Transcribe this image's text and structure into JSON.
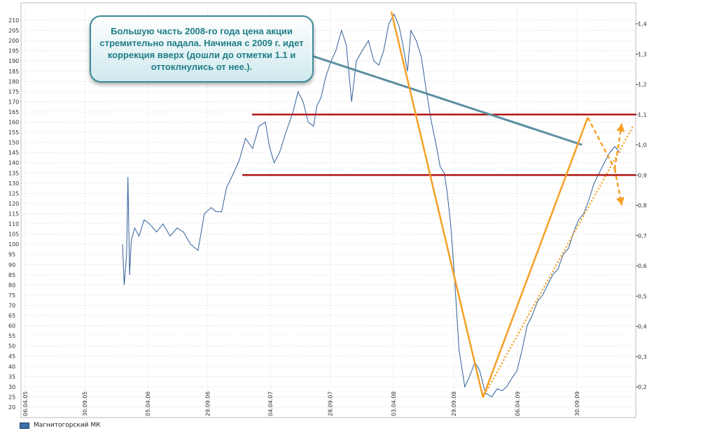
{
  "chart_data": {
    "type": "line",
    "title": "",
    "xlabel": "",
    "ylabel": "",
    "ylim": [
      20,
      212
    ],
    "y2lim": [
      0.134,
      1.47
    ],
    "left_ticks": [
      "20",
      "25",
      "30",
      "35",
      "40",
      "45",
      "50",
      "55",
      "60",
      "65",
      "70",
      "75",
      "80",
      "85",
      "90",
      "95",
      "100",
      "105",
      "110",
      "115",
      "120",
      "125",
      "130",
      "135",
      "140",
      "145",
      "150",
      "155",
      "160",
      "165",
      "170",
      "175",
      "180",
      "185",
      "190",
      "195",
      "200",
      "205",
      "210"
    ],
    "right_ticks": [
      "0,2",
      "0,3",
      "0,4",
      "0,5",
      "0,6",
      "0,7",
      "0,8",
      "0,9",
      "1,0",
      "1,1",
      "1,2",
      "1,3",
      "1,4"
    ],
    "x_ticks": [
      "06.04.05",
      "30.09.05",
      "05.04.06",
      "29.09.06",
      "04.04.07",
      "28.09.07",
      "03.04.08",
      "29.09.08",
      "06.04.09",
      "30.09.09"
    ],
    "series": [
      {
        "name": "Магнитогорский МК",
        "color": "#3c6ea8",
        "x": [
          "2006-01-20",
          "2006-01-25",
          "2006-02-01",
          "2006-02-05",
          "2006-02-10",
          "2006-02-15",
          "2006-02-25",
          "2006-03-10",
          "2006-03-25",
          "2006-04-10",
          "2006-05-01",
          "2006-05-20",
          "2006-06-10",
          "2006-07-01",
          "2006-07-20",
          "2006-08-10",
          "2006-09-01",
          "2006-09-20",
          "2006-10-10",
          "2006-10-25",
          "2006-11-10",
          "2006-11-25",
          "2006-12-10",
          "2007-01-01",
          "2007-01-20",
          "2007-02-10",
          "2007-03-01",
          "2007-03-20",
          "2007-04-01",
          "2007-04-15",
          "2007-05-01",
          "2007-05-20",
          "2007-06-10",
          "2007-06-25",
          "2007-07-10",
          "2007-07-25",
          "2007-08-10",
          "2007-08-20",
          "2007-09-01",
          "2007-09-15",
          "2007-10-01",
          "2007-10-15",
          "2007-11-01",
          "2007-11-15",
          "2007-12-01",
          "2007-12-15",
          "2008-01-01",
          "2008-01-20",
          "2008-02-05",
          "2008-02-20",
          "2008-03-05",
          "2008-03-20",
          "2008-04-05",
          "2008-04-20",
          "2008-05-01",
          "2008-05-15",
          "2008-05-25",
          "2008-06-10",
          "2008-06-25",
          "2008-07-10",
          "2008-07-25",
          "2008-08-10",
          "2008-08-20",
          "2008-09-01",
          "2008-09-10",
          "2008-09-20",
          "2008-10-01",
          "2008-10-15",
          "2008-11-01",
          "2008-11-15",
          "2008-12-01",
          "2008-12-15",
          "2009-01-01",
          "2009-01-20",
          "2009-02-05",
          "2009-02-20",
          "2009-03-05",
          "2009-03-20",
          "2009-04-05",
          "2009-04-20",
          "2009-05-05",
          "2009-05-20",
          "2009-06-05",
          "2009-06-20",
          "2009-07-05",
          "2009-07-20",
          "2009-08-05",
          "2009-08-20",
          "2009-09-05",
          "2009-09-20",
          "2009-10-05",
          "2009-10-20",
          "2009-11-05",
          "2009-11-20",
          "2009-12-05",
          "2009-12-20",
          "2010-01-05",
          "2010-01-20",
          "2010-02-05"
        ],
        "y": [
          100,
          80,
          95,
          133,
          85,
          102,
          108,
          104,
          112,
          110,
          106,
          110,
          104,
          108,
          106,
          100,
          97,
          115,
          118,
          116,
          116,
          128,
          133,
          141,
          152,
          147,
          158,
          160,
          148,
          140,
          145,
          155,
          165,
          175,
          170,
          160,
          158,
          168,
          172,
          182,
          190,
          195,
          205,
          198,
          170,
          190,
          195,
          200,
          190,
          188,
          195,
          208,
          213,
          207,
          198,
          185,
          205,
          200,
          192,
          175,
          160,
          147,
          138,
          135,
          125,
          110,
          85,
          48,
          30,
          35,
          42,
          38,
          27,
          25,
          29,
          28,
          30,
          34,
          38,
          48,
          60,
          65,
          72,
          75,
          80,
          85,
          88,
          95,
          98,
          106,
          112,
          115,
          122,
          130,
          135,
          140,
          145,
          148,
          145
        ]
      }
    ],
    "annotations": {
      "callout_text": "Большую часть 2008-го года цена акции стремительно падала. Начиная с 2009 г. идет коррекция вверх (дошли до отметки 1.1 и оттоклнулись от нее.).",
      "resistance_levels": [
        1.1,
        0.9
      ],
      "trend_lines": [
        {
          "from": [
            "2008-03-28",
            1.44
          ],
          "to": [
            "2008-12-25",
            0.165
          ]
        },
        {
          "from": [
            "2008-12-25",
            0.165
          ],
          "to": [
            "2009-11-01",
            1.09
          ]
        }
      ],
      "trend_dotted": {
        "from": [
          "2008-12-25",
          0.165
        ],
        "to": [
          "2010-03-15",
          1.06
        ]
      },
      "arrow_up": {
        "from": [
          "2010-01-20",
          0.92
        ],
        "to": [
          "2010-02-10",
          1.07
        ]
      },
      "arrow_down": {
        "from": [
          "2010-01-20",
          0.92
        ],
        "to": [
          "2010-02-10",
          0.8
        ]
      },
      "arrow_split_from_peak": {
        "from": [
          "2009-11-01",
          1.09
        ],
        "to": [
          "2010-01-25",
          0.91
        ]
      },
      "pointer_line": {
        "from": [
          "2007-07-15",
          1.33
        ],
        "to": [
          "2009-10-15",
          1.0
        ]
      }
    },
    "grid": true,
    "legend_position": "bottom-left"
  }
}
